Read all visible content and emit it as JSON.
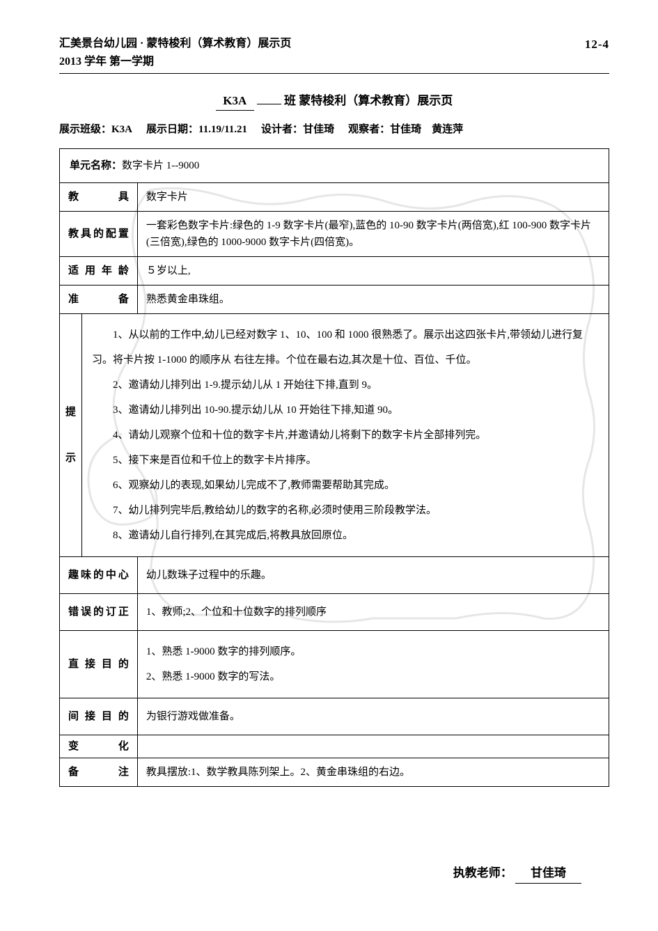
{
  "header": {
    "school_line1": "汇美景台幼儿园 · 蒙特梭利（算术教育）展示页",
    "school_line2": "2013 学年  第一学期",
    "page_number": "12-4"
  },
  "title": {
    "class_code": "K3A",
    "suffix": "班  蒙特梭利（算术教育）展示页"
  },
  "meta": {
    "class_label": "展示班级：",
    "class_value": "K3A",
    "date_label": "展示日期：",
    "date_value": "11.19/11.21",
    "designer_label": "设计者：",
    "designer_value": "甘佳琦",
    "observer_label": "观察者：",
    "observer_value": "甘佳琦",
    "observer_value2": "黄连萍"
  },
  "rows": {
    "unit_label": "单元名称：",
    "unit_value": "数字卡片 1--9000",
    "tool_label": "教具",
    "tool_value": "数字卡片",
    "config_label": "教具的配置",
    "config_value": "一套彩色数字卡片:绿色的 1-9 数字卡片(最窄),蓝色的 10-90 数字卡片(两倍宽),红 100-900 数字卡片(三倍宽),绿色的 1000-9000 数字卡片(四倍宽)。",
    "age_label": "适用年龄",
    "age_value": "５岁以上,",
    "prep_label": "准备",
    "prep_value": "熟悉黄金串珠组。",
    "steps_label": "提示",
    "steps": [
      "1、从以前的工作中,幼儿已经对数字 1、10、100 和 1000 很熟悉了。展示出这四张卡片,带领幼儿进行复习。将卡片按 1-1000 的顺序从  右往左排。个位在最右边,其次是十位、百位、千位。",
      "2、邀请幼儿排列出 1-9.提示幼儿从 1 开始往下排,直到 9。",
      "3、邀请幼儿排列出 10-90.提示幼儿从 10 开始往下排,知道 90。",
      "4、请幼儿观察个位和十位的数字卡片,并邀请幼儿将剩下的数字卡片全部排列完。",
      "5、接下来是百位和千位上的数字卡片排序。",
      "6、观察幼儿的表现,如果幼儿完成不了,教师需要帮助其完成。",
      "7、幼儿排列完毕后,教给幼儿的数字的名称,必须时使用三阶段教学法。",
      "8、邀请幼儿自行排列,在其完成后,将教具放回原位。"
    ],
    "interest_label": "趣味的中心",
    "interest_value": "幼儿数珠子过程中的乐趣。",
    "error_label": "错误的订正",
    "error_value": "1、教师;2、个位和十位数字的排列顺序",
    "direct_label": "直接目的",
    "direct_value1": "1、熟悉 1-9000 数字的排列顺序。",
    "direct_value2": "2、熟悉 1-9000 数字的写法。",
    "indirect_label": "间接目的",
    "indirect_value": "为银行游戏做准备。",
    "variation_label": "变化",
    "variation_value": "",
    "note_label": "备注",
    "note_value": "教具摆放:1、数学教具陈列架上。2、黄金串珠组的右边。"
  },
  "footer": {
    "teacher_label": "执教老师：",
    "teacher_name": "甘佳琦"
  },
  "style": {
    "border_color": "#000000",
    "text_color": "#000000",
    "background": "#ffffff",
    "watermark_color": "#b8b8b8"
  }
}
